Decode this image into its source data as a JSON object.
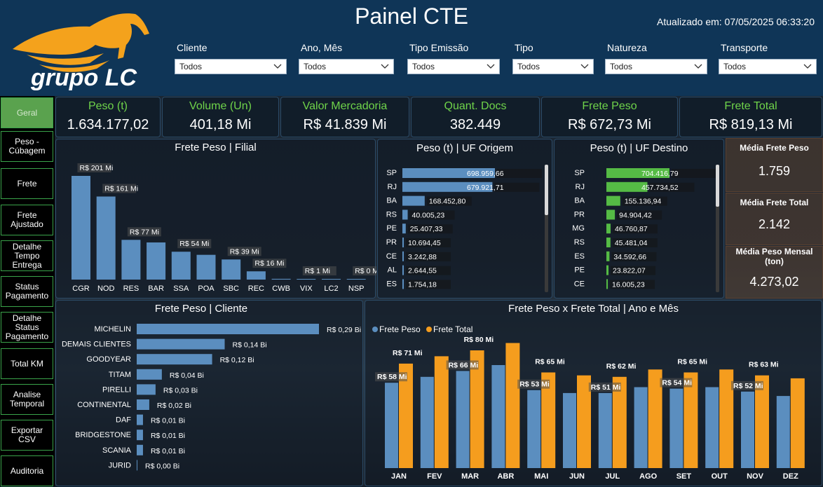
{
  "header": {
    "title": "Painel CTE",
    "updated": "Atualizado em: 07/05/2025 06:33:20",
    "logo_text": "grupo LC"
  },
  "filters": [
    {
      "label": "Cliente",
      "value": "Todos"
    },
    {
      "label": "Ano, Mês",
      "value": "Todos"
    },
    {
      "label": "Tipo Emissão",
      "value": "Todos"
    },
    {
      "label": "Tipo",
      "value": "Todos"
    },
    {
      "label": "Natureza",
      "value": "Todos"
    },
    {
      "label": "Transporte",
      "value": "Todos"
    }
  ],
  "nav": [
    {
      "label": "Geral",
      "active": true
    },
    {
      "label": "Peso - Cúbagem"
    },
    {
      "label": "Frete"
    },
    {
      "label": "Frete Ajustado"
    },
    {
      "label": "Detalhe Tempo Entrega"
    },
    {
      "label": "Status Pagamento"
    },
    {
      "label": "Detalhe Status Pagamento"
    },
    {
      "label": "Total KM"
    },
    {
      "label": "Analise Temporal"
    },
    {
      "label": "Exportar CSV"
    },
    {
      "label": "Auditoria"
    }
  ],
  "kpis": [
    {
      "label": "Peso (t)",
      "value": "1.634.177,02"
    },
    {
      "label": "Volume (Un)",
      "value": "401,18 Mi"
    },
    {
      "label": "Valor Mercadoria",
      "value": "R$ 41.839 Mi"
    },
    {
      "label": "Quant. Docs",
      "value": "382.449"
    },
    {
      "label": "Frete Peso",
      "value": "R$ 672,73 Mi"
    },
    {
      "label": "Frete Total",
      "value": "R$ 819,13 Mi"
    }
  ],
  "medias": [
    {
      "label": "Média Frete Peso",
      "value": "1.759"
    },
    {
      "label": "Média Frete Total",
      "value": "2.142"
    },
    {
      "label": "Média Peso Mensal (ton)",
      "value": "4.273,02"
    }
  ],
  "colors": {
    "blue": "#5b8ebf",
    "orange": "#f59d1e",
    "green": "#55bb45",
    "kpi_label": "#6fd44a",
    "nav_border": "#3aa34a"
  },
  "chart_data": [
    {
      "type": "bar",
      "title": "Frete Peso | Filial",
      "categories": [
        "CGR",
        "NOD",
        "RES",
        "BAR",
        "SSA",
        "POA",
        "SBC",
        "REC",
        "CWB",
        "VIX",
        "LC2",
        "NSP"
      ],
      "values": [
        201,
        161,
        77,
        72,
        54,
        48,
        39,
        16,
        1.5,
        1,
        0.3,
        0.2
      ],
      "labels": [
        "R$ 201 Mi",
        "R$ 161 Mi",
        "R$ 77 Mi",
        "",
        "R$ 54 Mi",
        "",
        "R$ 39 Mi",
        "R$ 16 Mi",
        "",
        "R$ 1 Mi",
        "",
        "R$ 0 Mi"
      ]
    },
    {
      "type": "bar",
      "title": "Peso (t) | UF Origem",
      "categories": [
        "SP",
        "RJ",
        "BA",
        "RS",
        "PE",
        "PR",
        "CE",
        "AL",
        "ES"
      ],
      "values": [
        698959.66,
        679921.71,
        168452.8,
        40005.23,
        25407.33,
        10694.45,
        3242.88,
        2644.55,
        1754.18
      ],
      "labels": [
        "698.959,66",
        "679.921,71",
        "168.452,80",
        "40.005,23",
        "25.407,33",
        "10.694,45",
        "3.242,88",
        "2.644,55",
        "1.754,18"
      ]
    },
    {
      "type": "bar",
      "title": "Peso (t) | UF Destino",
      "categories": [
        "SP",
        "RJ",
        "BA",
        "PR",
        "MG",
        "RS",
        "ES",
        "PE",
        "CE"
      ],
      "values": [
        704416.79,
        457734.52,
        155136.94,
        94904.42,
        46760.87,
        45481.04,
        34592.66,
        23822.07,
        16005.23
      ],
      "labels": [
        "704.416,79",
        "457.734,52",
        "155.136,94",
        "94.904,42",
        "46.760,87",
        "45.481,04",
        "34.592,66",
        "23.822,07",
        "16.005,23"
      ]
    },
    {
      "type": "bar",
      "title": "Frete Peso | Cliente",
      "categories": [
        "MICHELIN",
        "DEMAIS CLIENTES",
        "GOODYEAR",
        "TITAM",
        "PIRELLI",
        "CONTINENTAL",
        "DAF",
        "BRIDGESTONE",
        "SCANIA",
        "JURID"
      ],
      "values": [
        0.29,
        0.14,
        0.12,
        0.04,
        0.03,
        0.02,
        0.01,
        0.01,
        0.01,
        0.0
      ],
      "labels": [
        "R$ 0,29 Bi",
        "R$ 0,14 Bi",
        "R$ 0,12 Bi",
        "R$ 0,04 Bi",
        "R$ 0,03 Bi",
        "R$ 0,02 Bi",
        "R$ 0,01 Bi",
        "R$ 0,01 Bi",
        "R$ 0,01 Bi",
        "R$ 0,00 Bi"
      ]
    },
    {
      "type": "bar",
      "title": "Frete Peso x Frete Total | Ano e Mês",
      "categories": [
        "JAN",
        "FEV",
        "MAR",
        "ABR",
        "MAI",
        "JUN",
        "JUL",
        "AGO",
        "SET",
        "OUT",
        "NOV",
        "DEZ"
      ],
      "series": [
        {
          "name": "Frete Peso",
          "values": [
            58,
            62,
            66,
            70,
            53,
            51,
            51,
            55,
            54,
            55,
            52,
            49
          ],
          "labels": [
            "R$ 58 Mi",
            "",
            "R$ 66 Mi",
            "",
            "R$ 53 Mi",
            "",
            "R$ 51 Mi",
            "",
            "R$ 54 Mi",
            "",
            "R$ 52 Mi",
            ""
          ]
        },
        {
          "name": "Frete Total",
          "values": [
            71,
            76,
            80,
            85,
            65,
            63,
            62,
            67,
            65,
            67,
            63,
            61
          ],
          "labels": [
            "R$ 71 Mi",
            "",
            "R$ 80 Mi",
            "",
            "R$ 65 Mi",
            "",
            "R$ 62 Mi",
            "",
            "R$ 65 Mi",
            "",
            "R$ 63 Mi",
            ""
          ]
        }
      ]
    }
  ]
}
